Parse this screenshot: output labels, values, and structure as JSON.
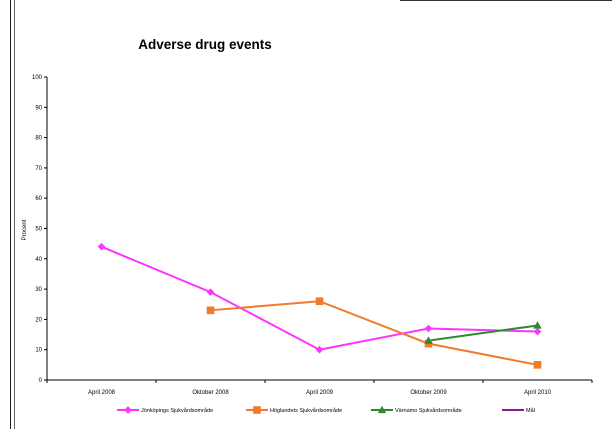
{
  "chart_data": {
    "type": "line",
    "title": "Adverse drug events",
    "ylabel": "Procent",
    "xlabel": "",
    "ylim": [
      0,
      100
    ],
    "yticks": [
      0,
      10,
      20,
      30,
      40,
      50,
      60,
      70,
      80,
      90,
      100
    ],
    "categories": [
      "April 2008",
      "Oktober 2008",
      "April 2009",
      "Oktober 2009",
      "April 2010"
    ],
    "grid": false,
    "legend_position": "bottom",
    "series": [
      {
        "name": "Jönköpings Sjukvårdsområde",
        "color": "#ff33ff",
        "marker": "diamond",
        "values": [
          44,
          29,
          10,
          17,
          16
        ]
      },
      {
        "name": "Höglandets Sjukvårdsområde",
        "color": "#f07c2b",
        "marker": "square",
        "values": [
          null,
          23,
          26,
          12,
          5
        ]
      },
      {
        "name": "Värnamo Sjukvårdsområde",
        "color": "#2d8a2d",
        "marker": "triangle",
        "values": [
          null,
          null,
          null,
          13,
          18
        ]
      },
      {
        "name": "Mål",
        "color": "#8a1a8a",
        "marker": "none",
        "values": [
          null,
          null,
          null,
          null,
          null
        ]
      }
    ]
  }
}
